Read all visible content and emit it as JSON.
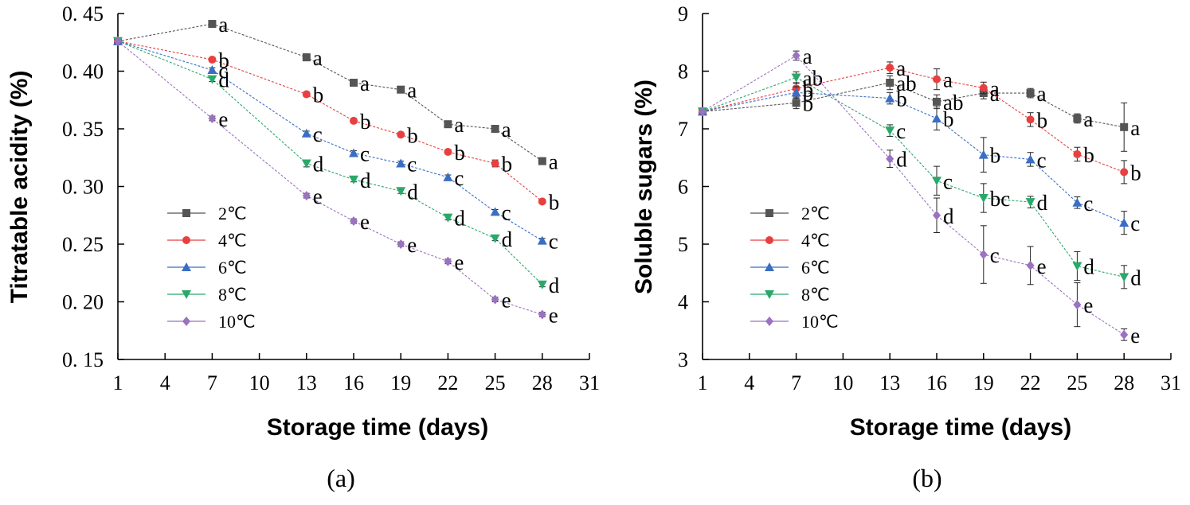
{
  "chart_data": [
    {
      "type": "line",
      "panel_label": "(a)",
      "xlabel": "Storage time (days)",
      "ylabel": "Titratable acidity (%)",
      "xlim": [
        1,
        31
      ],
      "ylim": [
        0.15,
        0.45
      ],
      "xticks": [
        1,
        4,
        7,
        10,
        13,
        16,
        19,
        22,
        25,
        28,
        31
      ],
      "yticks": [
        0.15,
        0.2,
        0.25,
        0.3,
        0.35,
        0.4,
        0.45
      ],
      "ytick_labels": [
        "0. 15",
        "0. 20",
        "0. 25",
        "0. 30",
        "0. 35",
        "0. 40",
        "0. 45"
      ],
      "legend_position": "lower-left",
      "x": [
        1,
        7,
        13,
        16,
        19,
        22,
        25,
        28
      ],
      "series": [
        {
          "name": "2℃",
          "color": "#555555",
          "marker": "square",
          "values": [
            0.426,
            0.441,
            0.412,
            0.39,
            0.384,
            0.354,
            0.35,
            0.322
          ],
          "errors": [
            0,
            0.002,
            0.003,
            0.002,
            0.002,
            0.002,
            0.002,
            0.002
          ],
          "letters": [
            "",
            "a",
            "a",
            "a",
            "a",
            "a",
            "a",
            "a"
          ]
        },
        {
          "name": "4℃",
          "color": "#e84040",
          "marker": "circle",
          "values": [
            0.426,
            0.41,
            0.38,
            0.357,
            0.345,
            0.33,
            0.32,
            0.287
          ],
          "errors": [
            0,
            0.002,
            0.002,
            0.002,
            0.002,
            0.002,
            0.003,
            0.002
          ],
          "letters": [
            "",
            "b",
            "b",
            "b",
            "b",
            "b",
            "b",
            "b"
          ]
        },
        {
          "name": "6℃",
          "color": "#3a6ec4",
          "marker": "triangle-up",
          "values": [
            0.426,
            0.401,
            0.346,
            0.329,
            0.32,
            0.308,
            0.278,
            0.253
          ],
          "errors": [
            0,
            0.002,
            0.002,
            0.002,
            0.002,
            0.002,
            0.002,
            0.002
          ],
          "letters": [
            "",
            "c",
            "c",
            "c",
            "c",
            "c",
            "c",
            "c"
          ]
        },
        {
          "name": "8℃",
          "color": "#2aa86a",
          "marker": "triangle-down",
          "values": [
            0.426,
            0.393,
            0.32,
            0.306,
            0.296,
            0.273,
            0.255,
            0.215
          ],
          "errors": [
            0,
            0.002,
            0.003,
            0.002,
            0.002,
            0.002,
            0.002,
            0.002
          ],
          "letters": [
            "",
            "d",
            "d",
            "d",
            "d",
            "d",
            "d",
            "d"
          ]
        },
        {
          "name": "10℃",
          "color": "#9b72c0",
          "marker": "diamond",
          "values": [
            0.426,
            0.359,
            0.292,
            0.27,
            0.25,
            0.235,
            0.202,
            0.189
          ],
          "errors": [
            0,
            0.002,
            0.002,
            0.002,
            0.002,
            0.002,
            0.002,
            0.002
          ],
          "letters": [
            "",
            "e",
            "e",
            "e",
            "e",
            "e",
            "e",
            "e"
          ]
        }
      ]
    },
    {
      "type": "line",
      "panel_label": "(b)",
      "xlabel": "Storage time (days)",
      "ylabel": "Soluble sugars (%)",
      "xlim": [
        1,
        31
      ],
      "ylim": [
        3,
        9
      ],
      "xticks": [
        1,
        4,
        7,
        10,
        13,
        16,
        19,
        22,
        25,
        28,
        31
      ],
      "yticks": [
        3,
        4,
        5,
        6,
        7,
        8,
        9
      ],
      "ytick_labels": [
        "3",
        "4",
        "5",
        "6",
        "7",
        "8",
        "9"
      ],
      "legend_position": "lower-left",
      "x": [
        1,
        7,
        13,
        16,
        19,
        22,
        25,
        28
      ],
      "series": [
        {
          "name": "2℃",
          "color": "#555555",
          "marker": "square",
          "values": [
            7.3,
            7.45,
            7.8,
            7.47,
            7.62,
            7.62,
            7.18,
            7.03
          ],
          "errors": [
            0,
            0.1,
            0.12,
            0.12,
            0.1,
            0.08,
            0.08,
            0.42
          ],
          "letters": [
            "",
            "b",
            "ab",
            "ab",
            "a",
            "a",
            "a",
            "a"
          ]
        },
        {
          "name": "4℃",
          "color": "#e84040",
          "marker": "circle",
          "values": [
            7.3,
            7.7,
            8.06,
            7.86,
            7.71,
            7.16,
            6.56,
            6.25
          ],
          "errors": [
            0,
            0.1,
            0.1,
            0.18,
            0.1,
            0.12,
            0.12,
            0.2
          ],
          "letters": [
            "",
            "b",
            "a",
            "a",
            "a",
            "b",
            "b",
            "b"
          ]
        },
        {
          "name": "6℃",
          "color": "#3a6ec4",
          "marker": "triangle-up",
          "values": [
            7.3,
            7.63,
            7.53,
            7.18,
            6.55,
            6.47,
            5.72,
            5.37
          ],
          "errors": [
            0,
            0.1,
            0.1,
            0.2,
            0.3,
            0.12,
            0.1,
            0.2
          ],
          "letters": [
            "",
            "b",
            "b",
            "b",
            "b",
            "c",
            "c",
            "c"
          ]
        },
        {
          "name": "8℃",
          "color": "#2aa86a",
          "marker": "triangle-down",
          "values": [
            7.3,
            7.89,
            6.97,
            6.1,
            5.8,
            5.73,
            4.62,
            4.43
          ],
          "errors": [
            0,
            0.1,
            0.1,
            0.25,
            0.25,
            0.1,
            0.25,
            0.2
          ],
          "letters": [
            "",
            "ab",
            "c",
            "c",
            "bc",
            "d",
            "d",
            "d"
          ]
        },
        {
          "name": "10℃",
          "color": "#9b72c0",
          "marker": "diamond",
          "values": [
            7.3,
            8.27,
            6.48,
            5.5,
            4.82,
            4.63,
            3.95,
            3.43
          ],
          "errors": [
            0,
            0.08,
            0.15,
            0.3,
            0.5,
            0.33,
            0.38,
            0.1
          ],
          "letters": [
            "",
            "a",
            "d",
            "d",
            "c",
            "e",
            "e",
            "e"
          ]
        }
      ]
    }
  ]
}
